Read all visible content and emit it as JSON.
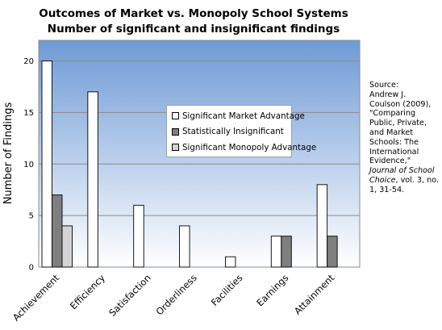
{
  "chart_data": {
    "type": "bar",
    "title": "Outcomes of Market vs. Monopoly School Systems",
    "subtitle": "Number of significant and insignificant findings",
    "xlabel": "",
    "ylabel": "Number of Findings",
    "ylim": [
      0,
      22
    ],
    "yticks": [
      0,
      5,
      10,
      15,
      20
    ],
    "grid": true,
    "legend_position": "center-right",
    "categories": [
      "Achievement",
      "Efficiency",
      "Satisfaction",
      "Orderliness",
      "Facilities",
      "Earnings",
      "Attainment"
    ],
    "series": [
      {
        "name": "Significant Market Advantage",
        "color": "#ffffff",
        "values": [
          20,
          17,
          6,
          4,
          1,
          3,
          8
        ]
      },
      {
        "name": "Statistically Insignificant",
        "color": "#7f7f7f",
        "values": [
          7,
          0,
          0,
          0,
          0,
          3,
          3
        ]
      },
      {
        "name": "Significant Monopoly Advantage",
        "color": "#d4d4d4",
        "values": [
          4,
          0,
          0,
          0,
          0,
          0,
          0
        ]
      }
    ],
    "colors": {
      "plot_top": "#6e9ad6",
      "plot_bottom": "#ffffff"
    }
  },
  "source": {
    "label": "Source:",
    "text1": "Andrew J. Coulson (2009), \"Comparing Public, Private, and Market Schools: The International Evidence,\"",
    "journal": "Journal of School Choice",
    "text2": ", vol. 3, no. 1, 31-54."
  }
}
